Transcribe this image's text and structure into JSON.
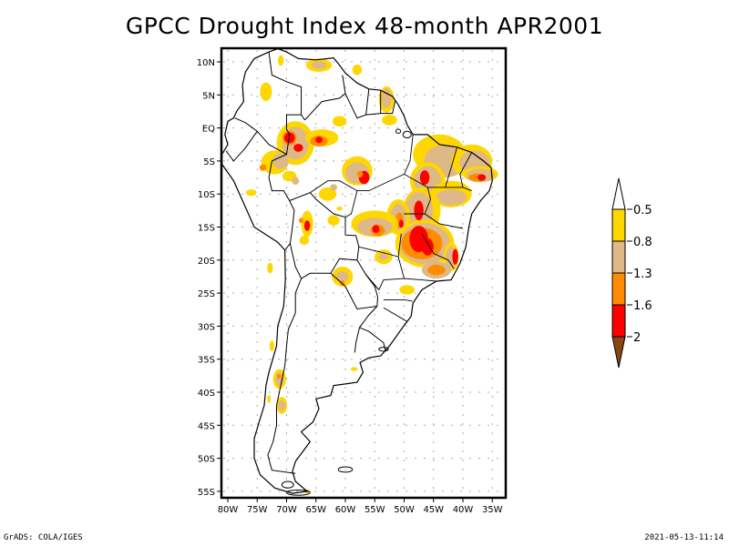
{
  "title": "GPCC Drought Index 48-month APR2001",
  "footer": {
    "left": "GrADS: COLA/IGES",
    "right": "2021-05-13-11:14"
  },
  "map": {
    "region": "South America",
    "lat_range": [
      -56,
      12
    ],
    "lon_range": [
      -81,
      -33
    ],
    "y_ticks": [
      {
        "lat": 10,
        "label": "10N"
      },
      {
        "lat": 5,
        "label": "5N"
      },
      {
        "lat": 0,
        "label": "EQ"
      },
      {
        "lat": -5,
        "label": "5S"
      },
      {
        "lat": -10,
        "label": "10S"
      },
      {
        "lat": -15,
        "label": "15S"
      },
      {
        "lat": -20,
        "label": "20S"
      },
      {
        "lat": -25,
        "label": "25S"
      },
      {
        "lat": -30,
        "label": "30S"
      },
      {
        "lat": -35,
        "label": "35S"
      },
      {
        "lat": -40,
        "label": "40S"
      },
      {
        "lat": -45,
        "label": "45S"
      },
      {
        "lat": -50,
        "label": "50S"
      },
      {
        "lat": -55,
        "label": "55S"
      }
    ],
    "x_ticks": [
      {
        "lon": -80,
        "label": "80W"
      },
      {
        "lon": -75,
        "label": "75W"
      },
      {
        "lon": -70,
        "label": "70W"
      },
      {
        "lon": -65,
        "label": "65W"
      },
      {
        "lon": -60,
        "label": "60W"
      },
      {
        "lon": -55,
        "label": "55W"
      },
      {
        "lon": -50,
        "label": "50W"
      },
      {
        "lon": -45,
        "label": "45W"
      },
      {
        "lon": -40,
        "label": "40W"
      },
      {
        "lon": -35,
        "label": "35W"
      }
    ],
    "grid": "dotted"
  },
  "legend": {
    "levels": [
      {
        "label": "-0.5",
        "color": "#ffd700"
      },
      {
        "label": "-0.8",
        "color": "#deb887"
      },
      {
        "label": "-1.3",
        "color": "#ff8c00"
      },
      {
        "label": "-1.6",
        "color": "#ff0000"
      },
      {
        "label": "-2",
        "color": "#8b4513"
      }
    ],
    "top_arrow_color": "#ffffff",
    "bottom_arrow_color": "#8b4513"
  },
  "drought_areas": [
    {
      "name": "western-amazon",
      "level": 3,
      "lon": -69,
      "lat": -2
    },
    {
      "name": "central-amazon",
      "level": 3,
      "lon": -57,
      "lat": -7
    },
    {
      "name": "northeast-brazil",
      "level": 3,
      "lon": -38,
      "lat": -8
    },
    {
      "name": "tocantins",
      "level": 3,
      "lon": -47,
      "lat": -7
    },
    {
      "name": "minas-gerais",
      "level": 3,
      "lon": -46,
      "lat": -17
    },
    {
      "name": "mato-grosso",
      "level": 3,
      "lon": -53,
      "lat": -15
    },
    {
      "name": "bolivia",
      "level": 3,
      "lon": -66,
      "lat": -14
    },
    {
      "name": "central-chile",
      "level": 2,
      "lon": -71,
      "lat": -38
    }
  ]
}
